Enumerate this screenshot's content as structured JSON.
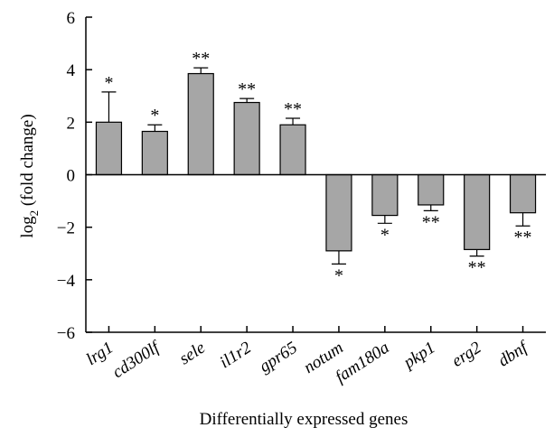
{
  "chart_data": {
    "type": "bar",
    "categories": [
      "lrg1",
      "cd300lf",
      "sele",
      "il1r2",
      "gpr65",
      "notum",
      "fam180a",
      "pkp1",
      "erg2",
      "dbnf"
    ],
    "values": [
      2.0,
      1.65,
      3.85,
      2.75,
      1.9,
      -2.9,
      -1.55,
      -1.15,
      -2.85,
      -1.45
    ],
    "errors": [
      1.15,
      0.25,
      0.22,
      0.15,
      0.25,
      0.5,
      0.3,
      0.22,
      0.25,
      0.5
    ],
    "significance": [
      "*",
      "*",
      "**",
      "**",
      "**",
      "*",
      "*",
      "**",
      "**",
      "**"
    ],
    "xlabel": "Differentially expressed genes",
    "ylabel_prefix": "log",
    "ylabel_sub": "2",
    "ylabel_suffix": " (fold change)",
    "ylim": [
      -6,
      6
    ],
    "yticks": [
      -6,
      -4,
      -2,
      0,
      2,
      4,
      6
    ],
    "ytick_labels": [
      "−6",
      "−4",
      "−2",
      "0",
      "2",
      "4",
      "6"
    ],
    "bar_color": "#a6a6a6",
    "grid": false,
    "legend": "none"
  }
}
